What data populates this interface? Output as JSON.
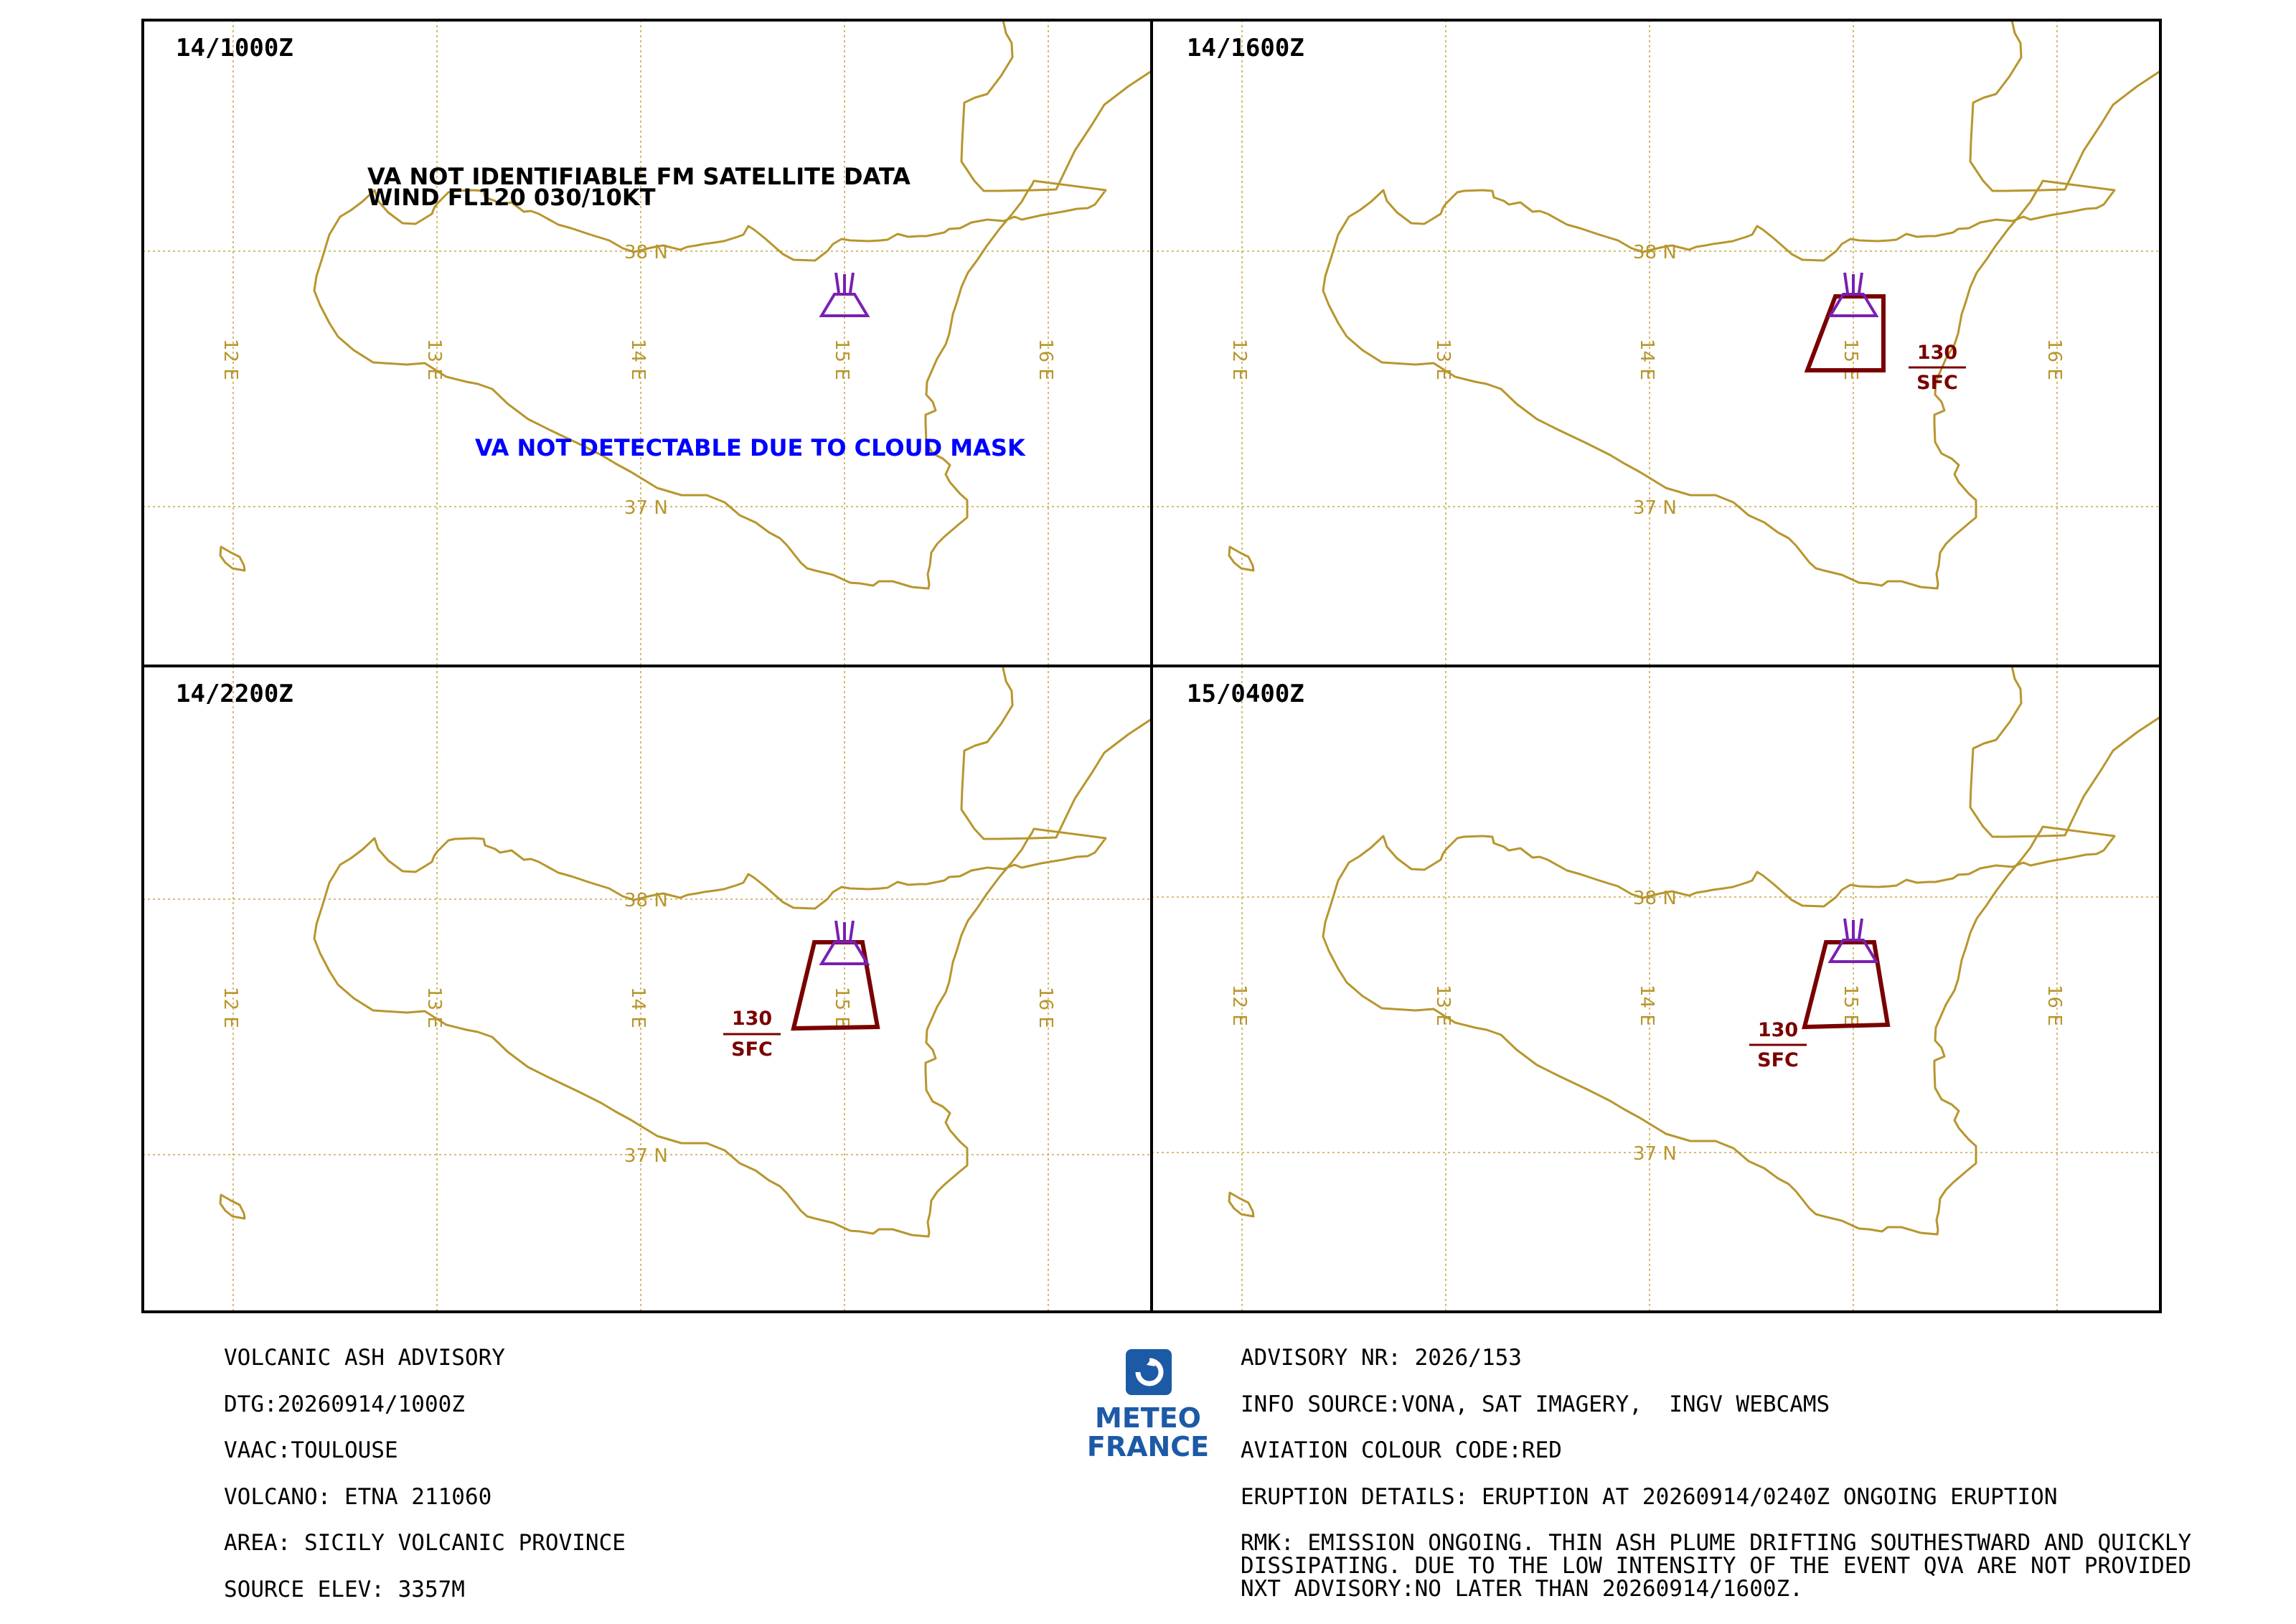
{
  "panels": [
    {
      "time": "14/1000Z",
      "notes": [
        "VA NOT IDENTIFIABLE FM SATELLITE DATA",
        "WIND FL120 030/10KT"
      ],
      "cloud_note": "VA NOT DETECTABLE DUE TO CLOUD MASK",
      "ash_cloud": null
    },
    {
      "time": "14/1600Z",
      "notes": [],
      "cloud_note": "",
      "ash_cloud": {
        "top": "130",
        "base": "SFC"
      }
    },
    {
      "time": "14/2200Z",
      "notes": [],
      "cloud_note": "",
      "ash_cloud": {
        "top": "130",
        "base": "SFC"
      }
    },
    {
      "time": "15/0400Z",
      "notes": [],
      "cloud_note": "",
      "ash_cloud": {
        "top": "130",
        "base": "SFC"
      }
    }
  ],
  "grid_labels": {
    "lon": [
      "12 E",
      "13 E",
      "14 E",
      "15 E",
      "16 E"
    ],
    "lat": [
      "38 N",
      "37 N"
    ]
  },
  "colors": {
    "coast": "#b8962e",
    "grid": "#c9a84a",
    "ash": "#7a0000",
    "volcano": "#7a1fb3",
    "cloud_note": "#0000ff",
    "brand": "#1c5aa6"
  },
  "logo": {
    "line1": "METEO",
    "line2": "FRANCE",
    "icon": "meteo-france-logo-icon"
  },
  "advisory_left": [
    "VOLCANIC ASH ADVISORY",
    "DTG:20260914/1000Z",
    "VAAC:TOULOUSE",
    "VOLCANO: ETNA 211060",
    "AREA: SICILY VOLCANIC PROVINCE",
    "SOURCE ELEV: 3357M"
  ],
  "advisory_right": [
    "ADVISORY NR: 2026/153",
    "INFO SOURCE:VONA, SAT IMAGERY,  INGV WEBCAMS",
    "AVIATION COLOUR CODE:RED",
    "ERUPTION DETAILS: ERUPTION AT 20260914/0240Z ONGOING ERUPTION"
  ],
  "remarks": [
    "RMK: EMISSION ONGOING. THIN ASH PLUME DRIFTING SOUTHESTWARD AND QUICKLY",
    "DISSIPATING. DUE TO THE LOW INTENSITY OF THE EVENT QVA ARE NOT PROVIDED",
    "NXT ADVISORY:NO LATER THAN 20260914/1600Z."
  ]
}
